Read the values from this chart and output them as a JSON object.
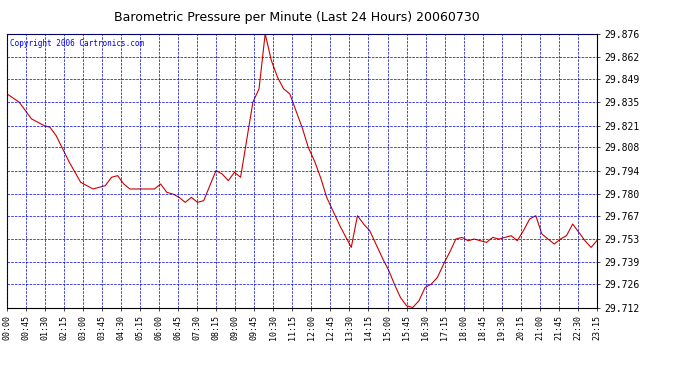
{
  "title": "Barometric Pressure per Minute (Last 24 Hours) 20060730",
  "copyright": "Copyright 2006 Cartronics.com",
  "line_color": "#cc0000",
  "bg_color": "#ffffff",
  "plot_bg_color": "#ffffff",
  "grid_color": "#0000cc",
  "ytick_labels": [
    29.712,
    29.726,
    29.739,
    29.753,
    29.767,
    29.78,
    29.794,
    29.808,
    29.821,
    29.835,
    29.849,
    29.862,
    29.876
  ],
  "xtick_labels": [
    "00:00",
    "00:45",
    "01:30",
    "02:15",
    "03:00",
    "03:45",
    "04:30",
    "05:15",
    "06:00",
    "06:45",
    "07:30",
    "08:15",
    "09:00",
    "09:45",
    "10:30",
    "11:15",
    "12:00",
    "12:45",
    "13:30",
    "14:15",
    "15:00",
    "15:45",
    "16:30",
    "17:15",
    "18:00",
    "18:45",
    "19:30",
    "20:15",
    "21:00",
    "21:45",
    "22:30",
    "23:15"
  ],
  "ymin": 29.712,
  "ymax": 29.876,
  "num_points": 1440,
  "keypoints": [
    [
      0,
      29.84
    ],
    [
      30,
      29.835
    ],
    [
      60,
      29.825
    ],
    [
      90,
      29.821
    ],
    [
      105,
      29.82
    ],
    [
      120,
      29.815
    ],
    [
      150,
      29.8
    ],
    [
      180,
      29.787
    ],
    [
      210,
      29.783
    ],
    [
      240,
      29.785
    ],
    [
      255,
      29.79
    ],
    [
      270,
      29.791
    ],
    [
      285,
      29.786
    ],
    [
      300,
      29.783
    ],
    [
      330,
      29.783
    ],
    [
      360,
      29.783
    ],
    [
      375,
      29.786
    ],
    [
      390,
      29.781
    ],
    [
      405,
      29.78
    ],
    [
      420,
      29.778
    ],
    [
      435,
      29.775
    ],
    [
      450,
      29.778
    ],
    [
      465,
      29.775
    ],
    [
      480,
      29.776
    ],
    [
      495,
      29.785
    ],
    [
      510,
      29.794
    ],
    [
      525,
      29.792
    ],
    [
      540,
      29.788
    ],
    [
      555,
      29.793
    ],
    [
      570,
      29.79
    ],
    [
      600,
      29.835
    ],
    [
      615,
      29.843
    ],
    [
      630,
      29.876
    ],
    [
      645,
      29.86
    ],
    [
      660,
      29.85
    ],
    [
      675,
      29.843
    ],
    [
      690,
      29.84
    ],
    [
      720,
      29.82
    ],
    [
      735,
      29.808
    ],
    [
      750,
      29.8
    ],
    [
      765,
      29.79
    ],
    [
      780,
      29.778
    ],
    [
      795,
      29.77
    ],
    [
      810,
      29.762
    ],
    [
      825,
      29.755
    ],
    [
      840,
      29.748
    ],
    [
      855,
      29.767
    ],
    [
      870,
      29.762
    ],
    [
      885,
      29.758
    ],
    [
      900,
      29.75
    ],
    [
      915,
      29.742
    ],
    [
      930,
      29.735
    ],
    [
      945,
      29.726
    ],
    [
      960,
      29.718
    ],
    [
      975,
      29.713
    ],
    [
      990,
      29.712
    ],
    [
      1005,
      29.716
    ],
    [
      1020,
      29.724
    ],
    [
      1035,
      29.726
    ],
    [
      1050,
      29.73
    ],
    [
      1065,
      29.738
    ],
    [
      1080,
      29.745
    ],
    [
      1095,
      29.753
    ],
    [
      1110,
      29.754
    ],
    [
      1125,
      29.752
    ],
    [
      1140,
      29.753
    ],
    [
      1155,
      29.752
    ],
    [
      1170,
      29.751
    ],
    [
      1185,
      29.754
    ],
    [
      1200,
      29.753
    ],
    [
      1215,
      29.754
    ],
    [
      1230,
      29.755
    ],
    [
      1245,
      29.752
    ],
    [
      1260,
      29.758
    ],
    [
      1275,
      29.765
    ],
    [
      1290,
      29.767
    ],
    [
      1305,
      29.756
    ],
    [
      1320,
      29.753
    ],
    [
      1335,
      29.75
    ],
    [
      1350,
      29.753
    ],
    [
      1365,
      29.755
    ],
    [
      1380,
      29.762
    ],
    [
      1395,
      29.757
    ],
    [
      1410,
      29.752
    ],
    [
      1425,
      29.748
    ],
    [
      1439,
      29.752
    ]
  ]
}
